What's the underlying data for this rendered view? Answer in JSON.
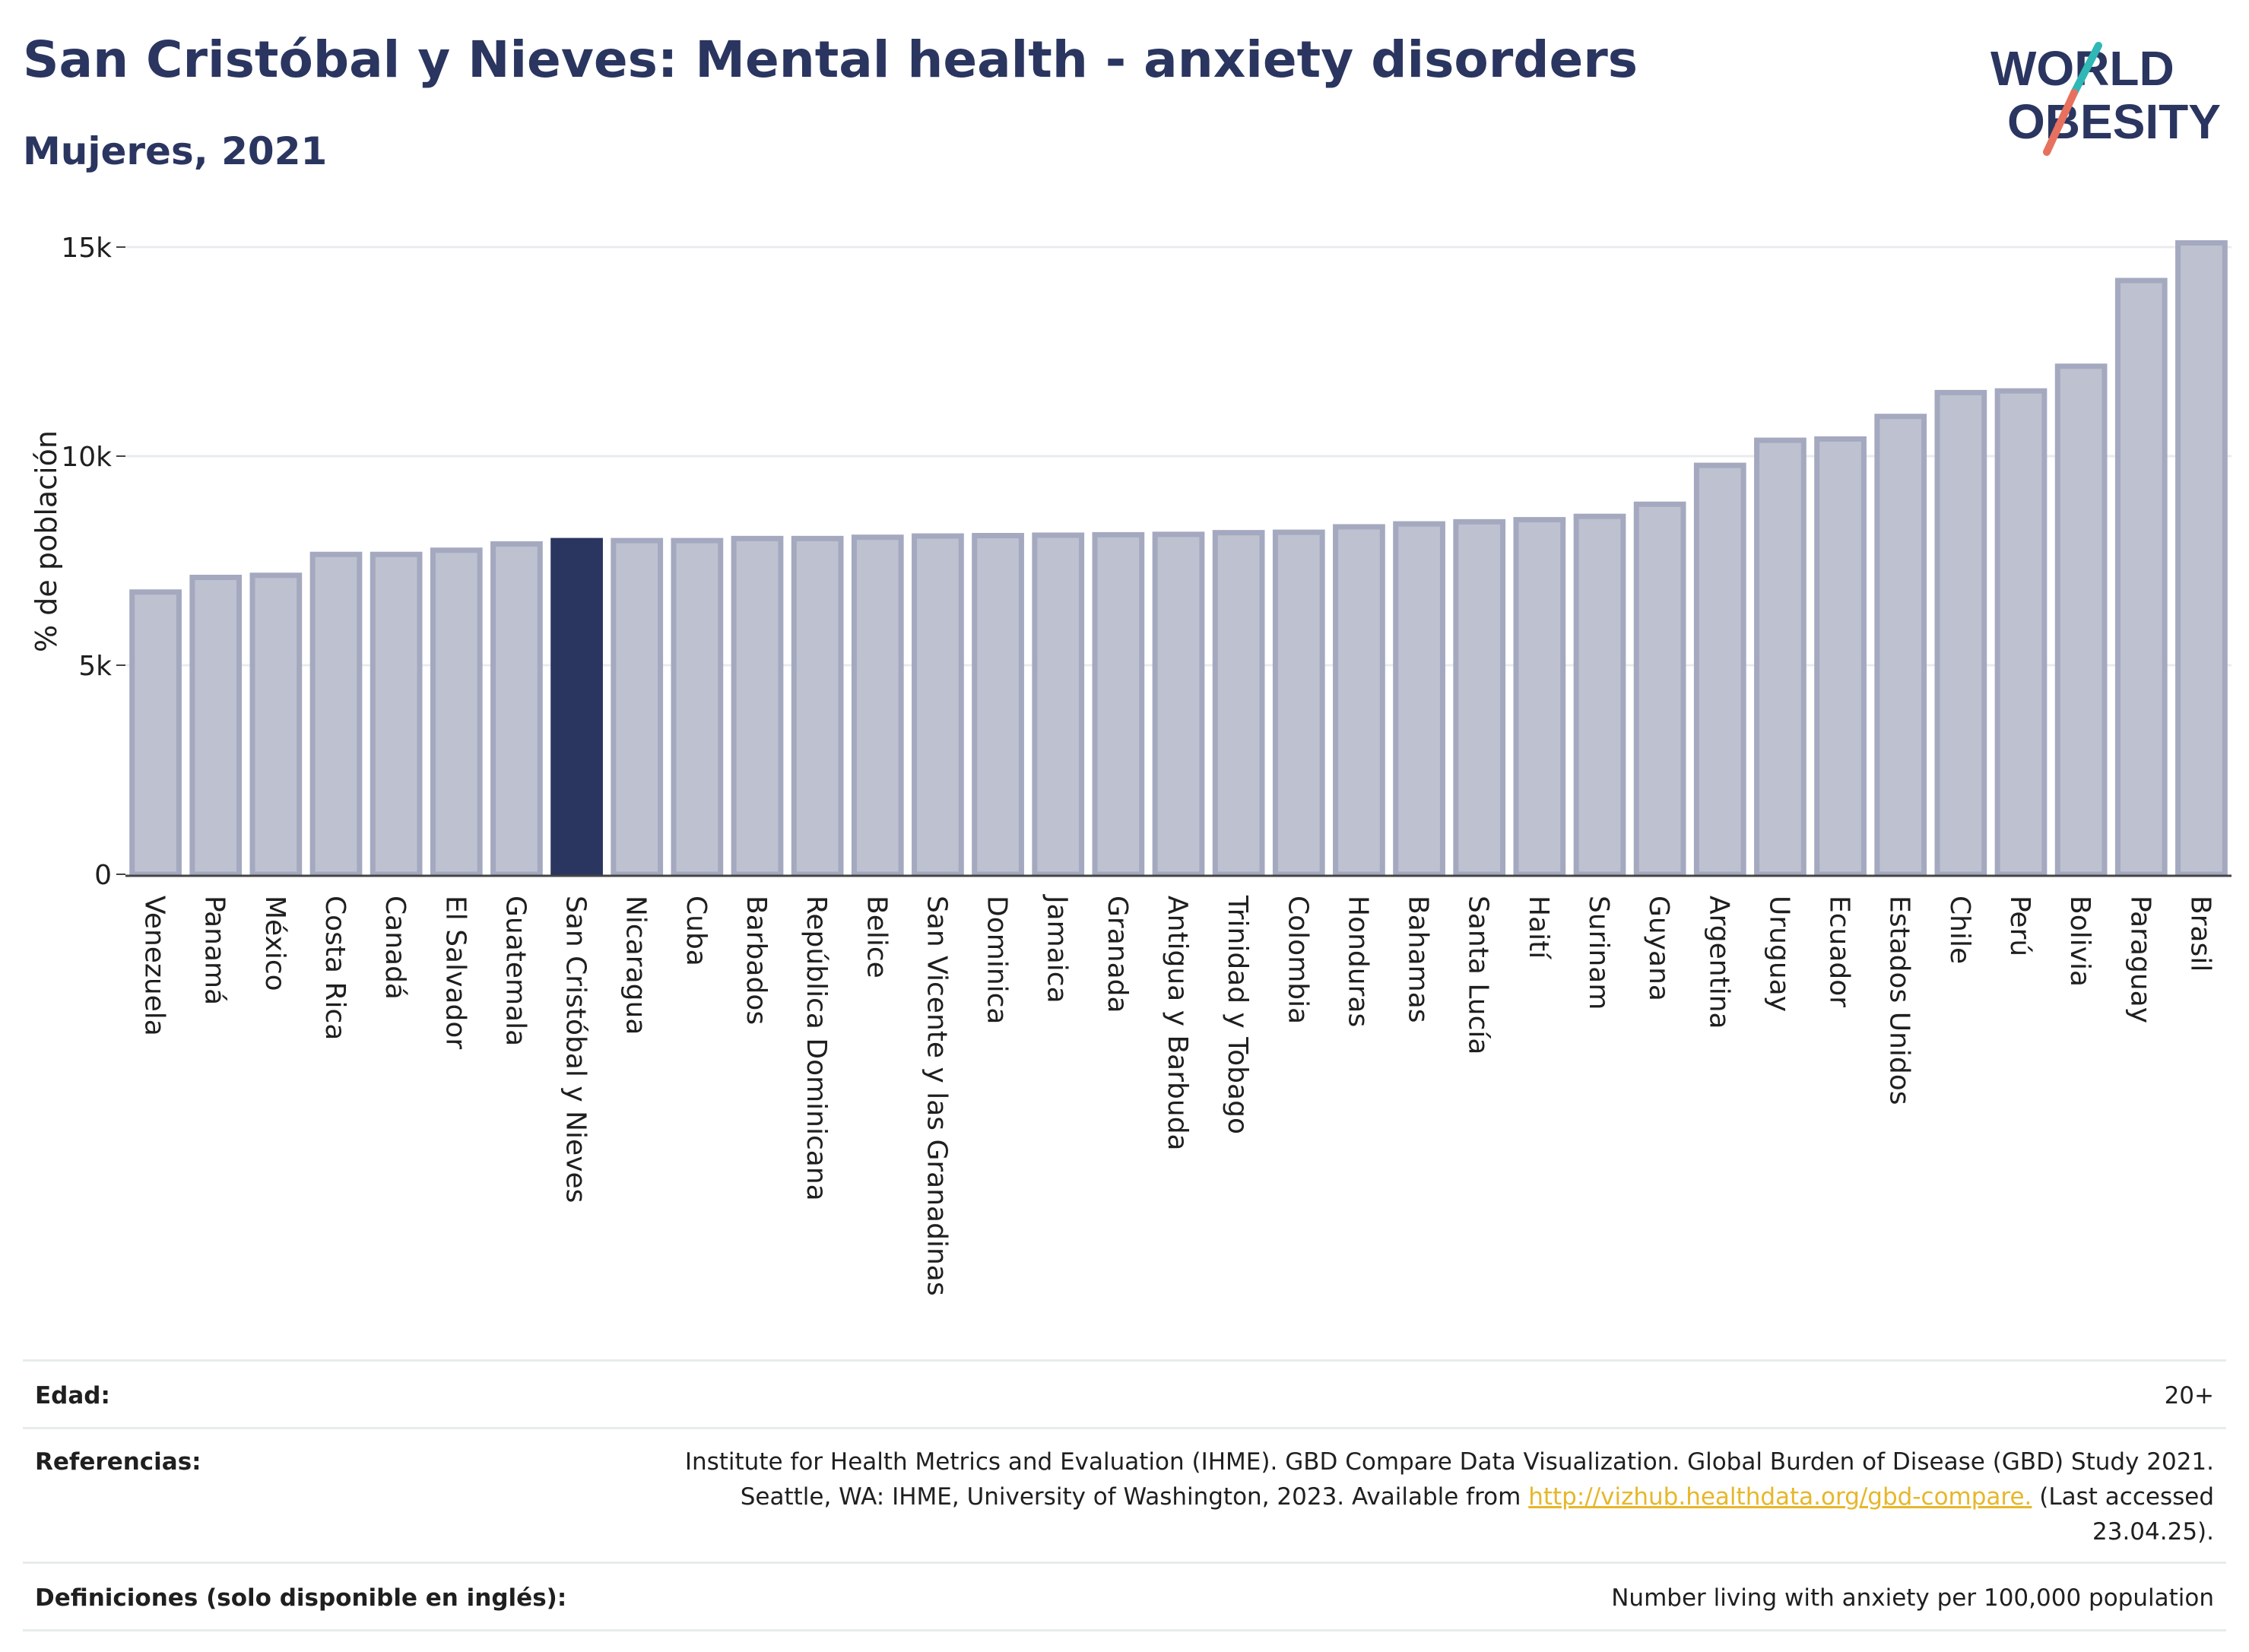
{
  "header": {
    "title": "San Cristóbal y Nieves: Mental health - anxiety disorders",
    "subtitle": "Mujeres, 2021",
    "logo_text_top": "WORLD",
    "logo_text_bottom": "OBESITY"
  },
  "colors": {
    "title": "#2a3560",
    "bar_default": "#bec1cf",
    "bar_border": "#a4a9c0",
    "bar_highlight": "#2a3560",
    "gridline": "#e9ecef",
    "link": "#e6b72b",
    "logo_slash_top": "#2fb8b5",
    "logo_slash_bottom": "#e8705e"
  },
  "chart_data": {
    "type": "bar",
    "ylabel": "% de población",
    "xlabel": "",
    "ylim": [
      0,
      15500
    ],
    "yticks": [
      0,
      5000,
      10000,
      15000
    ],
    "ytick_labels": [
      "0",
      "5k",
      "10k",
      "15k"
    ],
    "grid": true,
    "highlight": "San Cristóbal y Nieves",
    "categories": [
      "Venezuela",
      "Panamá",
      "México",
      "Costa Rica",
      "Canadá",
      "El Salvador",
      "Guatemala",
      "San Cristóbal y Nieves",
      "Nicaragua",
      "Cuba",
      "Barbados",
      "República Dominicana",
      "Belice",
      "San Vicente y las Granadinas",
      "Dominica",
      "Jamaica",
      "Granada",
      "Antigua y Barbuda",
      "Trinidad y Tobago",
      "Colombia",
      "Honduras",
      "Bahamas",
      "Santa Lucía",
      "Haití",
      "Surinam",
      "Guyana",
      "Argentina",
      "Uruguay",
      "Ecuador",
      "Estados Unidos",
      "Chile",
      "Perú",
      "Bolivia",
      "Paraguay",
      "Brasil"
    ],
    "values": [
      6750,
      7100,
      7150,
      7650,
      7650,
      7750,
      7900,
      7980,
      7980,
      7980,
      8030,
      8030,
      8060,
      8090,
      8100,
      8110,
      8120,
      8130,
      8170,
      8180,
      8310,
      8380,
      8430,
      8480,
      8560,
      8850,
      9780,
      10380,
      10410,
      10950,
      11520,
      11560,
      12150,
      14200,
      15100
    ]
  },
  "footer": {
    "age_label": "Edad:",
    "age_value": "20+",
    "ref_label": "Referencias:",
    "ref_text_1": "Institute for Health Metrics and Evaluation (IHME). GBD Compare Data Visualization. Global Burden of Disease (GBD) Study 2021.",
    "ref_text_2": "Seattle, WA: IHME, University of Washington, 2023. Available from ",
    "ref_link": "http://vizhub.healthdata.org/gbd-compare.",
    "ref_text_3": " (Last accessed",
    "ref_text_4": "23.04.25).",
    "def_label": "Definiciones (solo disponible en inglés):",
    "def_value": "Number living with anxiety per 100,000 population"
  }
}
